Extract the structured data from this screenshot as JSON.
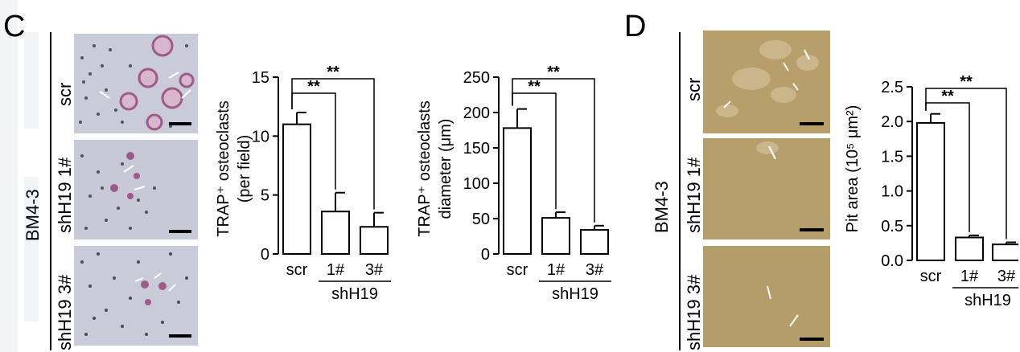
{
  "panel_c": {
    "letter": "C",
    "cell_line": "BM4-3",
    "row_labels": [
      "scr",
      "shH19 1#",
      "shH19  3#"
    ]
  },
  "panel_d": {
    "letter": "D",
    "cell_line": "BM4-3",
    "row_labels": [
      "scr",
      "shH19 1#",
      "shH19  3#"
    ]
  },
  "colors": {
    "trap_background": "#c9ccd8",
    "trap_cells": "#b06f9a",
    "pit_background": "#b79e6a"
  },
  "chart_data": [
    {
      "type": "bar",
      "categories": [
        "scr",
        "1#",
        "3#"
      ],
      "group_label": "shH19",
      "ylabel_line1": "TRAP⁺ osteoclasts",
      "ylabel_line2": "(per field)",
      "values": [
        11.0,
        3.6,
        2.3
      ],
      "errors": [
        1.0,
        1.6,
        1.2
      ],
      "ylim": [
        0,
        15
      ],
      "yticks": [
        "0",
        "5",
        "10",
        "15"
      ],
      "significance": [
        "**",
        "**"
      ]
    },
    {
      "type": "bar",
      "categories": [
        "scr",
        "1#",
        "3#"
      ],
      "group_label": "shH19",
      "ylabel_line1": "TRAP⁺ osteoclasts",
      "ylabel_line2": "diameter (μm)",
      "values": [
        178,
        51,
        34
      ],
      "errors": [
        27,
        8,
        6
      ],
      "ylim": [
        0,
        250
      ],
      "yticks": [
        "0",
        "50",
        "100",
        "150",
        "200",
        "250"
      ],
      "significance": [
        "**",
        "**"
      ]
    },
    {
      "type": "bar",
      "categories": [
        "scr",
        "1#",
        "3#"
      ],
      "group_label": "shH19",
      "ylabel": "Pit area (10⁵ μm²)",
      "values": [
        1.98,
        0.33,
        0.23
      ],
      "errors": [
        0.13,
        0.03,
        0.03
      ],
      "ylim": [
        0,
        2.5
      ],
      "yticks": [
        "0.0",
        "0.5",
        "1.0",
        "1.5",
        "2.0",
        "2.5"
      ],
      "significance": [
        "**",
        "**"
      ]
    }
  ]
}
